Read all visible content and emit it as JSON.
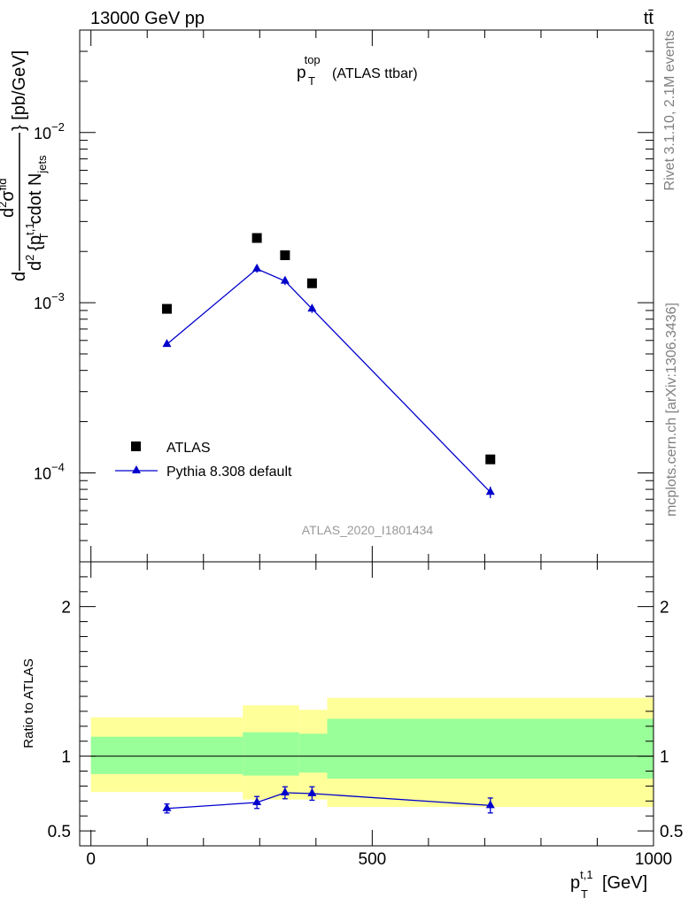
{
  "header": {
    "left": "13000 GeV pp",
    "right": "tt̄"
  },
  "side_labels": {
    "rivet": "Rivet 3.1.10,  2.1M events",
    "source": "mcplots.cern.ch [arXiv:1306.3436]"
  },
  "colors": {
    "data": "#000000",
    "mc": "#0000cc",
    "band_outer": "#ffff99",
    "band_inner": "#99ff99"
  },
  "chart_data": [
    {
      "type": "scatter",
      "panel": "main",
      "title": "p_T^top (ATLAS ttbar)",
      "title_parts": {
        "base": "p",
        "sub": "T",
        "sup": "top",
        "rest": "(ATLAS ttbar)"
      },
      "ylabel": "d d²σ^fid / d² {p_T^t,1 cdot N_jets} [pb/GeV]",
      "ylabel_parts": {
        "d1": "d",
        "numerator": "d",
        "numerator_sup": "2",
        "sigma": "σ",
        "sigma_sup": "fid",
        "denominator": "d",
        "denominator_sup": "2",
        "brace_open": "{p",
        "p_sub": "T",
        "p_sup": "t,1",
        "cdot": "cdot N",
        "n_sub": "jets",
        "brace_close": "} [pb/GeV]"
      },
      "yscale": "log",
      "ylim": [
        3e-05,
        0.04
      ],
      "xlim": [
        -20,
        1000
      ],
      "ytick_labels": [
        {
          "value": 0.0001,
          "base": "10",
          "exp": "−4"
        },
        {
          "value": 0.001,
          "base": "10",
          "exp": "−3"
        },
        {
          "value": 0.01,
          "base": "10",
          "exp": "−2"
        }
      ],
      "watermark": "ATLAS_2020_I1801434",
      "legend_position": "bottom-left",
      "series": [
        {
          "name": "ATLAS",
          "marker": "square",
          "x": [
            135,
            295,
            345,
            393,
            710
          ],
          "y": [
            0.00092,
            0.0024,
            0.0019,
            0.0013,
            0.00012
          ]
        },
        {
          "name": "Pythia 8.308 default",
          "marker": "triangle",
          "x": [
            135,
            295,
            345,
            393,
            710
          ],
          "y": [
            0.00057,
            0.00158,
            0.00134,
            0.00092,
            7.7e-05
          ],
          "yerr": [
            1e-05,
            8e-05,
            7e-05,
            5e-05,
            6e-06
          ]
        }
      ]
    },
    {
      "type": "line",
      "panel": "ratio",
      "ylabel": "Ratio to ATLAS",
      "ylim": [
        0.4,
        2.3
      ],
      "xlim": [
        -20,
        1000
      ],
      "yticks": [
        0.5,
        1,
        2
      ],
      "ytick_labels": [
        "0.5",
        "1",
        "2"
      ],
      "xticks": [
        0,
        500,
        1000
      ],
      "xtick_labels": [
        "0",
        "500",
        "1000"
      ],
      "xlabel": "p_T^t,1 [GeV]",
      "xlabel_parts": {
        "base": "p",
        "sub": "T",
        "sup": "t,1",
        "rest": "[GeV]"
      },
      "bands": [
        {
          "x0": 0,
          "x1": 270,
          "outer": [
            0.76,
            1.26
          ],
          "inner": [
            0.88,
            1.13
          ]
        },
        {
          "x0": 270,
          "x1": 370,
          "outer": [
            0.71,
            1.34
          ],
          "inner": [
            0.87,
            1.16
          ]
        },
        {
          "x0": 370,
          "x1": 420,
          "outer": [
            0.71,
            1.31
          ],
          "inner": [
            0.89,
            1.15
          ]
        },
        {
          "x0": 420,
          "x1": 1000,
          "outer": [
            0.66,
            1.39
          ],
          "inner": [
            0.85,
            1.25
          ]
        }
      ],
      "series": [
        {
          "name": "Pythia 8.308 default",
          "x": [
            135,
            295,
            345,
            393,
            710
          ],
          "y": [
            0.65,
            0.69,
            0.755,
            0.75,
            0.67
          ],
          "yerr": [
            0.03,
            0.04,
            0.04,
            0.045,
            0.05
          ]
        }
      ]
    }
  ]
}
